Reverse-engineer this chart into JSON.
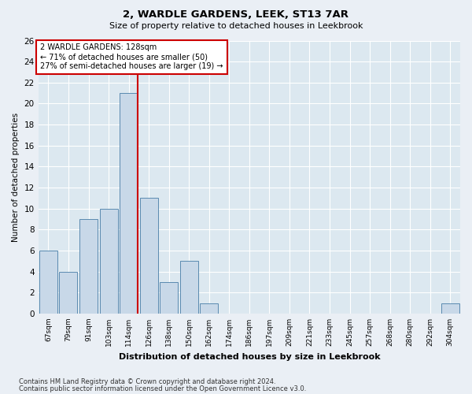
{
  "title": "2, WARDLE GARDENS, LEEK, ST13 7AR",
  "subtitle": "Size of property relative to detached houses in Leekbrook",
  "xlabel": "Distribution of detached houses by size in Leekbrook",
  "ylabel": "Number of detached properties",
  "categories": [
    "67sqm",
    "79sqm",
    "91sqm",
    "103sqm",
    "114sqm",
    "126sqm",
    "138sqm",
    "150sqm",
    "162sqm",
    "174sqm",
    "186sqm",
    "197sqm",
    "209sqm",
    "221sqm",
    "233sqm",
    "245sqm",
    "257sqm",
    "268sqm",
    "280sqm",
    "292sqm",
    "304sqm"
  ],
  "values": [
    6,
    4,
    9,
    10,
    21,
    11,
    3,
    5,
    1,
    0,
    0,
    0,
    0,
    0,
    0,
    0,
    0,
    0,
    0,
    0,
    1
  ],
  "bar_color": "#c8d8e8",
  "bar_edge_color": "#5a8ab0",
  "red_line_index": 4,
  "property_label": "2 WARDLE GARDENS: 128sqm",
  "annotation_line1": "← 71% of detached houses are smaller (50)",
  "annotation_line2": "27% of semi-detached houses are larger (19) →",
  "annotation_box_color": "#ffffff",
  "annotation_box_edge": "#cc0000",
  "red_line_color": "#cc0000",
  "ylim": [
    0,
    26
  ],
  "yticks": [
    0,
    2,
    4,
    6,
    8,
    10,
    12,
    14,
    16,
    18,
    20,
    22,
    24,
    26
  ],
  "bg_color": "#eaeff5",
  "plot_bg_color": "#dce8f0",
  "grid_color": "#ffffff",
  "footer1": "Contains HM Land Registry data © Crown copyright and database right 2024.",
  "footer2": "Contains public sector information licensed under the Open Government Licence v3.0."
}
